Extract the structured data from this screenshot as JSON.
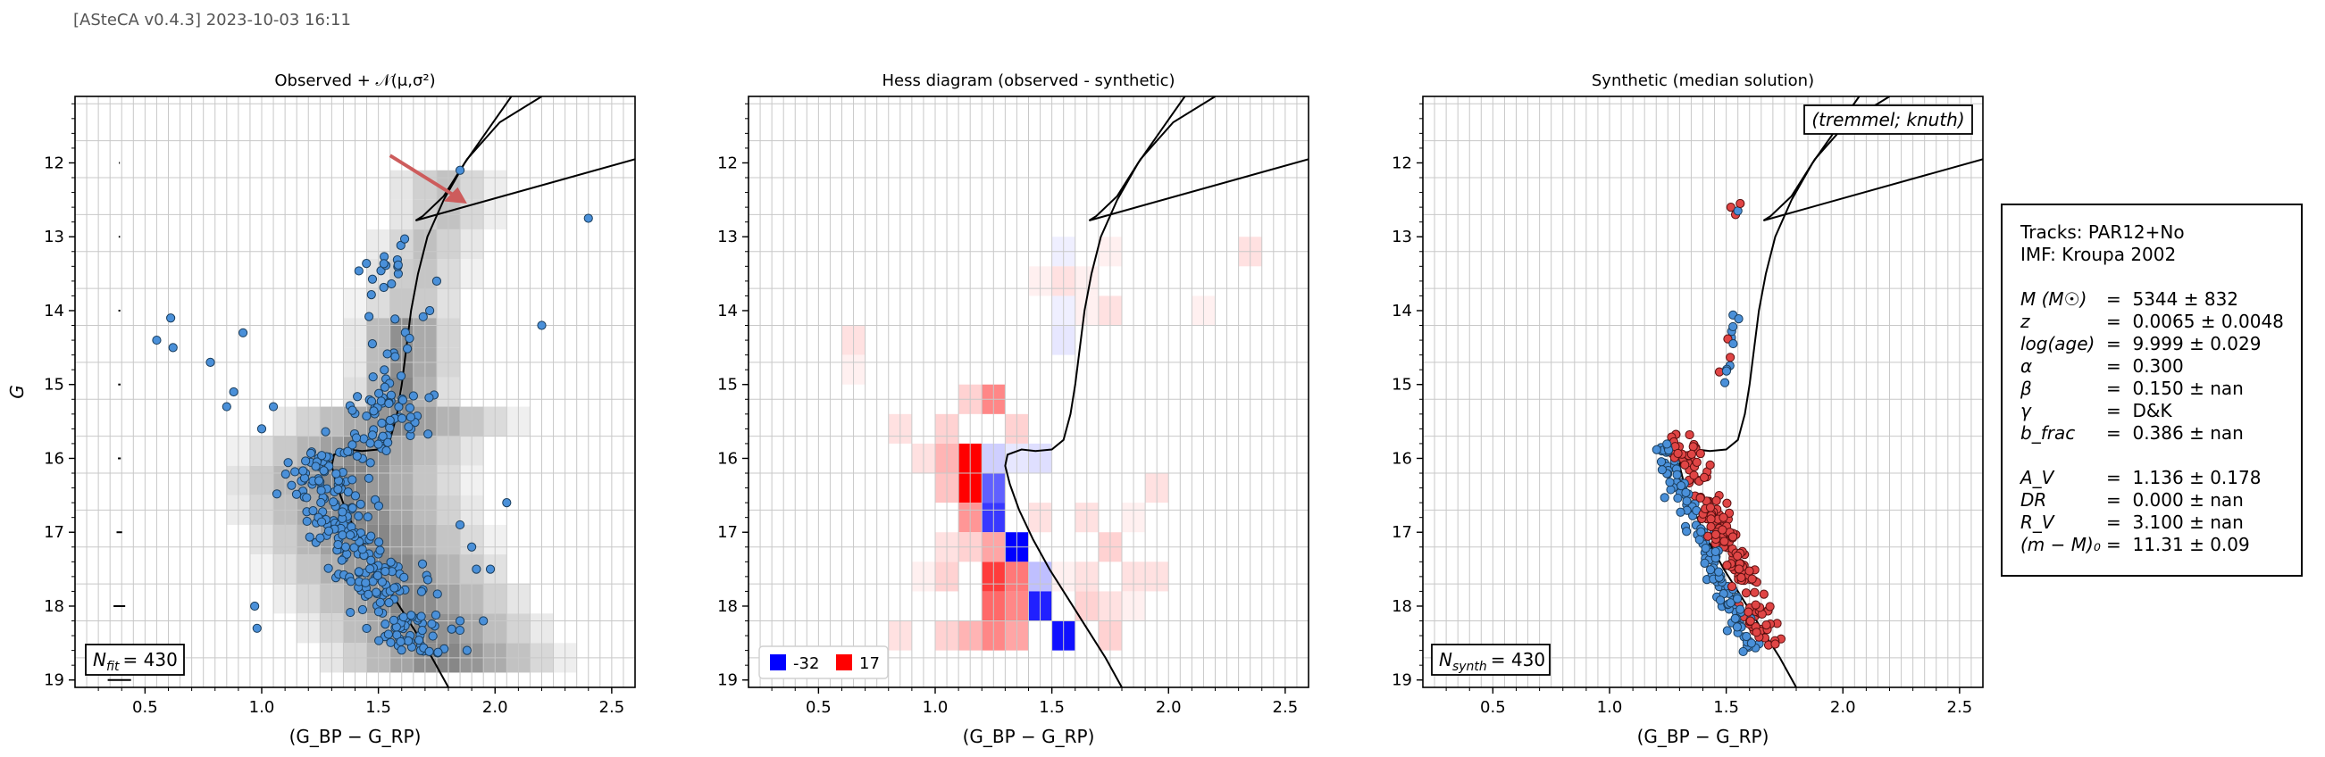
{
  "header": "[ASteCA v0.4.3] 2023-10-03 16:11",
  "panels": [
    {
      "title": "Observed + 𝒩(μ,σ²)",
      "legend": "N_fit = 430",
      "legend_main": "N",
      "legend_sub": "fit",
      "legend_val": "= 430"
    },
    {
      "title": "Hess diagram (observed - synthetic)",
      "legend_neg": "-32",
      "legend_pos": "17"
    },
    {
      "title": "Synthetic (median solution)",
      "legend": "N_synth = 430",
      "legend_main": "N",
      "legend_sub": "synth",
      "legend_val": "= 430",
      "tag": "(tremmel; knuth)"
    }
  ],
  "axes": {
    "xlabel": "(G_BP − G_RP)",
    "ylabel": "G",
    "xticks": [
      "0.5",
      "1.0",
      "1.5",
      "2.0",
      "2.5"
    ],
    "yticks": [
      "12",
      "13",
      "14",
      "15",
      "16",
      "17",
      "18",
      "19"
    ]
  },
  "params": {
    "tracks": "Tracks: PAR12+No",
    "imf": "IMF: Kroupa 2002",
    "rows": [
      {
        "sym": "M (M☉)",
        "val": "=  5344 ± 832"
      },
      {
        "sym": "z",
        "val": "=  0.0065 ± 0.0048"
      },
      {
        "sym": "log(age)",
        "val": "=  9.999 ± 0.029"
      },
      {
        "sym": "α",
        "val": "=  0.300"
      },
      {
        "sym": "β",
        "val": "=  0.150 ± nan"
      },
      {
        "sym": "γ",
        "val": "=  D&K"
      },
      {
        "sym": "b_frac",
        "val": "=  0.386 ± nan"
      },
      {
        "sym": "",
        "val": ""
      },
      {
        "sym": "A_V",
        "val": "=  1.136 ± 0.178"
      },
      {
        "sym": "DR",
        "val": "=  0.000 ± nan"
      },
      {
        "sym": "R_V",
        "val": "=  3.100 ± nan"
      },
      {
        "sym": "(m − M)₀",
        "val": "=  11.31 ± 0.09"
      }
    ]
  },
  "chart_data": [
    {
      "type": "scatter",
      "title": "Observed + 𝒩(μ,σ²)",
      "xlabel": "(G_BP − G_RP)",
      "ylabel": "G",
      "xlim": [
        0.2,
        2.6
      ],
      "ylim": [
        19.1,
        11.1
      ],
      "grid": true,
      "series": [
        {
          "kind": "isochrone",
          "color": "#000000"
        },
        {
          "kind": "stars",
          "color": "#4a90d9",
          "edge": "#1a3d5c",
          "count": 430
        }
      ],
      "error_bars_left": [
        12.0,
        13.0,
        14.0,
        15.0,
        16.0,
        17.0,
        18.0,
        19.0
      ],
      "arrow_color": "#cd5c5c",
      "density_background": "grayscale"
    },
    {
      "type": "heatmap",
      "title": "Hess diagram (observed - synthetic)",
      "xlabel": "(G_BP − G_RP)",
      "ylabel": "",
      "xlim": [
        0.2,
        2.6
      ],
      "ylim": [
        19.1,
        11.1
      ],
      "color_min": -32,
      "color_max": 17,
      "neg_color": "#0000ff",
      "pos_color": "#ff0000"
    },
    {
      "type": "scatter",
      "title": "Synthetic (median solution)",
      "xlabel": "(G_BP − G_RP)",
      "ylabel": "",
      "xlim": [
        0.2,
        2.6
      ],
      "ylim": [
        19.1,
        11.1
      ],
      "grid": true,
      "series": [
        {
          "kind": "isochrone",
          "color": "#000000"
        },
        {
          "kind": "single stars",
          "color": "#4a90d9"
        },
        {
          "kind": "binaries",
          "color": "#e04545"
        }
      ],
      "count": 430
    }
  ]
}
